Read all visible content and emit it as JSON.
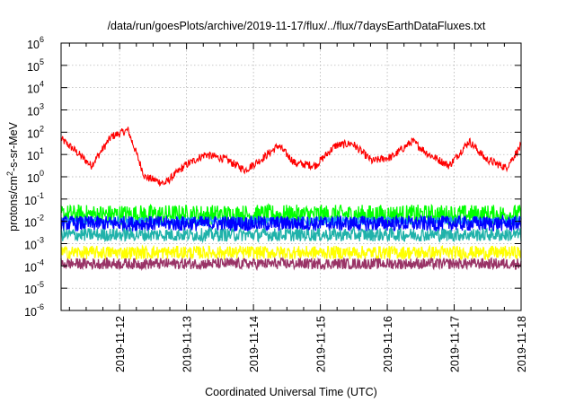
{
  "chart_data": {
    "type": "line",
    "title": "/data/run/goesPlots/archive/2019-11-17/flux/../flux/7daysEarthDataFluxes.txt",
    "xlabel": "Coordinated Universal Time (UTC)",
    "ylabel_parts": [
      "protons/cm",
      "2",
      "-s-sr-MeV"
    ],
    "y_scale": "log",
    "ylim_exponent": [
      -6,
      6
    ],
    "y_tick_labels": [
      {
        "base": "10",
        "exp": "-6"
      },
      {
        "base": "10",
        "exp": "-5"
      },
      {
        "base": "10",
        "exp": "-4"
      },
      {
        "base": "10",
        "exp": "-3"
      },
      {
        "base": "10",
        "exp": "-2"
      },
      {
        "base": "10",
        "exp": "-1"
      },
      {
        "base": "10",
        "exp": "0"
      },
      {
        "base": "10",
        "exp": "1"
      },
      {
        "base": "10",
        "exp": "2"
      },
      {
        "base": "10",
        "exp": "3"
      },
      {
        "base": "10",
        "exp": "4"
      },
      {
        "base": "10",
        "exp": "5"
      },
      {
        "base": "10",
        "exp": "6"
      }
    ],
    "xlim": [
      "2019-11-11 03:00",
      "2019-11-18 00:00"
    ],
    "x_tick_labels": [
      "2019-11-12",
      "2019-11-13",
      "2019-11-14",
      "2019-11-15",
      "2019-11-16",
      "2019-11-17",
      "2019-11-18"
    ],
    "grid": true,
    "colors": {
      "red": "#ff0000",
      "green": "#00ff00",
      "light_blue": "#1e90ff",
      "blue": "#0000ff",
      "teal": "#20b2aa",
      "yellow": "#ffff00",
      "maroon": "#993366"
    },
    "series": [
      {
        "color": "red",
        "x_day": [
          0,
          0.2,
          0.45,
          0.75,
          1.0,
          1.25,
          1.55,
          1.85,
          2.15,
          2.45,
          2.75,
          3.0,
          3.25,
          3.5,
          3.8,
          4.1,
          4.35,
          4.65,
          4.95,
          5.25,
          5.5,
          5.8,
          6.1,
          6.35,
          6.65,
          6.875
        ],
        "log_flux": [
          1.7,
          1.2,
          0.5,
          1.8,
          2.1,
          0.0,
          -0.3,
          0.5,
          1.0,
          0.8,
          0.3,
          0.8,
          1.4,
          0.6,
          0.5,
          1.4,
          1.5,
          0.7,
          0.9,
          1.6,
          1.0,
          0.5,
          1.6,
          0.8,
          0.4,
          1.4
        ],
        "noise_log": 0.18
      },
      {
        "color": "green",
        "x_day": [
          0,
          6.875
        ],
        "log_flux": [
          -1.7,
          -1.7
        ],
        "noise_log": 0.45
      },
      {
        "color": "light_blue",
        "x_day": [
          0,
          6.875
        ],
        "log_flux": [
          -2.0,
          -2.0
        ],
        "noise_log": 0.2
      },
      {
        "color": "blue",
        "x_day": [
          0,
          6.875
        ],
        "log_flux": [
          -2.1,
          -2.1
        ],
        "noise_log": 0.35
      },
      {
        "color": "teal",
        "x_day": [
          0,
          6.875
        ],
        "log_flux": [
          -2.6,
          -2.6
        ],
        "noise_log": 0.3
      },
      {
        "color": "yellow",
        "x_day": [
          0,
          6.875
        ],
        "log_flux": [
          -3.4,
          -3.4
        ],
        "noise_log": 0.3
      },
      {
        "color": "maroon",
        "x_day": [
          0,
          6.875
        ],
        "log_flux": [
          -3.9,
          -3.9
        ],
        "noise_log": 0.25
      }
    ]
  }
}
